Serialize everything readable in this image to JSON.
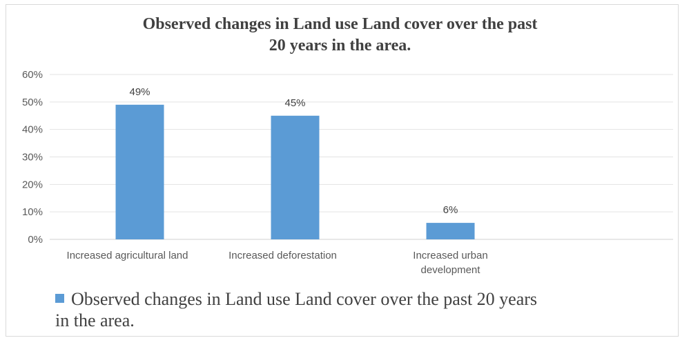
{
  "chart_data": {
    "type": "bar",
    "title": "Observed changes in Land use Land cover over the past 20 years in the area.",
    "title_lines": [
      "Observed changes in Land use Land cover over the past",
      "20 years in the area."
    ],
    "categories": [
      "Increased agricultural land",
      "Increased deforestation",
      "Increased urban development"
    ],
    "category_lines": [
      [
        "Increased agricultural land"
      ],
      [
        "Increased deforestation"
      ],
      [
        "Increased urban",
        "development"
      ]
    ],
    "series": [
      {
        "name": "Observed changes in Land use Land cover over the past 20 years in the area.",
        "values": [
          49,
          45,
          6
        ],
        "labels": [
          "49%",
          "45%",
          "6%"
        ],
        "color": "#5b9bd5"
      }
    ],
    "ylim": [
      0,
      60
    ],
    "yticks": [
      0,
      10,
      20,
      30,
      40,
      50,
      60
    ],
    "ytick_labels": [
      "0%",
      "10%",
      "20%",
      "30%",
      "40%",
      "50%",
      "60%"
    ],
    "grid": true,
    "legend_position": "bottom",
    "legend_lines": [
      "Observed changes in Land use Land cover over the past 20 years",
      "in the area."
    ]
  }
}
